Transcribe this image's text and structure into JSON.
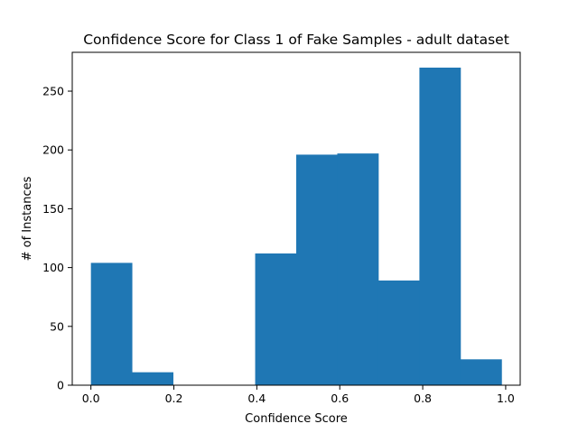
{
  "chart_data": {
    "type": "bar",
    "subtype": "histogram",
    "title": "Confidence Score for Class 1 of Fake Samples - adult dataset",
    "xlabel": "Confidence Score",
    "ylabel": "# of Instances",
    "xlim": [
      -0.045,
      1.035
    ],
    "ylim": [
      0,
      283
    ],
    "xticks": [
      0.0,
      0.2,
      0.4,
      0.6,
      0.8,
      1.0
    ],
    "xtick_labels": [
      "0.0",
      "0.2",
      "0.4",
      "0.6",
      "0.8",
      "1.0"
    ],
    "yticks": [
      0,
      50,
      100,
      150,
      200,
      250
    ],
    "ytick_labels": [
      "0",
      "50",
      "100",
      "150",
      "200",
      "250"
    ],
    "bins": [
      {
        "x0": 0.0,
        "x1": 0.099,
        "value": 104
      },
      {
        "x0": 0.099,
        "x1": 0.198,
        "value": 11
      },
      {
        "x0": 0.198,
        "x1": 0.297,
        "value": 0
      },
      {
        "x0": 0.297,
        "x1": 0.396,
        "value": 0
      },
      {
        "x0": 0.396,
        "x1": 0.495,
        "value": 112
      },
      {
        "x0": 0.495,
        "x1": 0.594,
        "value": 196
      },
      {
        "x0": 0.594,
        "x1": 0.693,
        "value": 197
      },
      {
        "x0": 0.693,
        "x1": 0.792,
        "value": 89
      },
      {
        "x0": 0.792,
        "x1": 0.891,
        "value": 270
      },
      {
        "x0": 0.891,
        "x1": 0.99,
        "value": 22
      }
    ],
    "bar_color": "#1f77b4",
    "grid": false,
    "legend": "none"
  }
}
